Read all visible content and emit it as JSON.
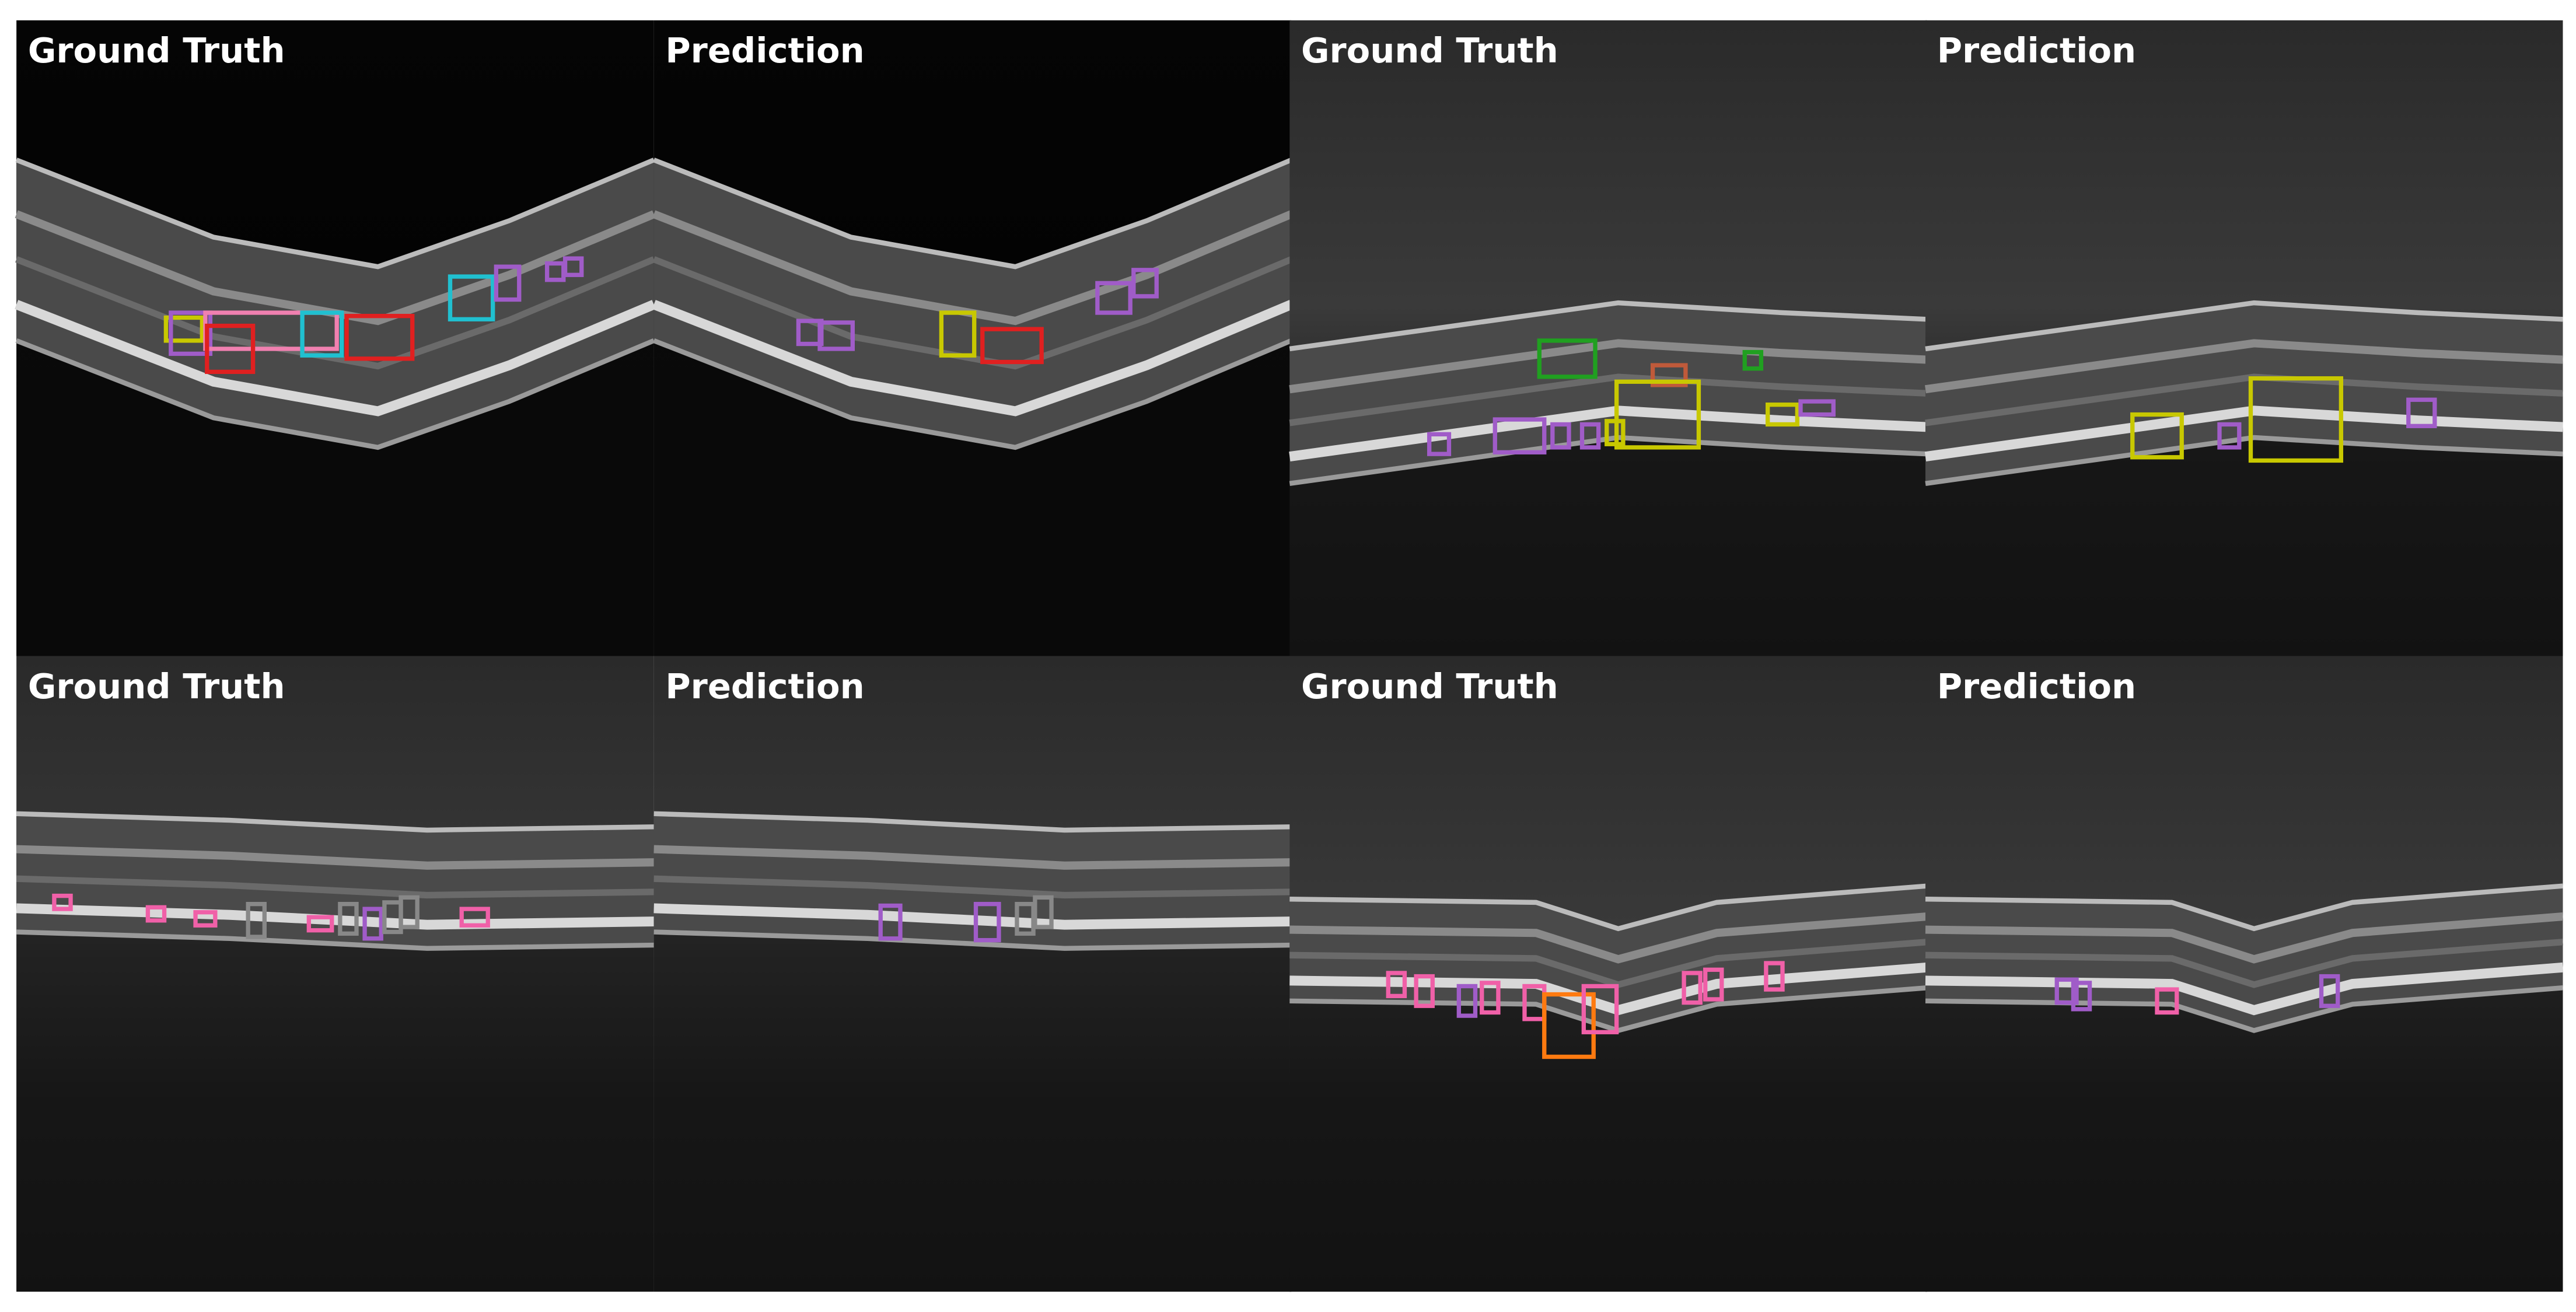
{
  "panels": [
    {
      "label": "Ground Truth"
    },
    {
      "label": "Prediction"
    },
    {
      "label": "Ground Truth"
    },
    {
      "label": "Prediction"
    },
    {
      "label": "Ground Truth"
    },
    {
      "label": "Prediction"
    },
    {
      "label": "Ground Truth"
    },
    {
      "label": "Prediction"
    }
  ]
}
